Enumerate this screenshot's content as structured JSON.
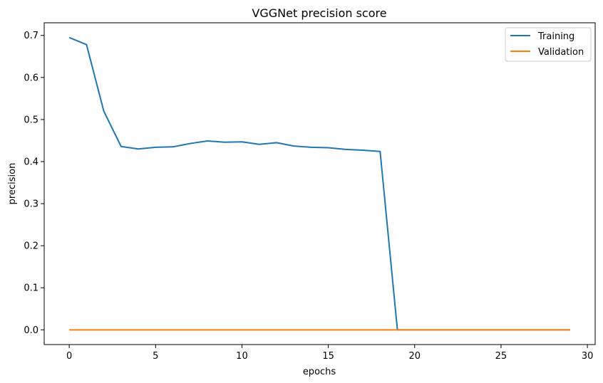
{
  "chart_data": {
    "type": "line",
    "title": "VGGNet precision score",
    "xlabel": "epochs",
    "ylabel": "precision",
    "xlim": [
      -1.45,
      30.45
    ],
    "ylim": [
      -0.035,
      0.73
    ],
    "xticks": [
      0,
      5,
      10,
      15,
      20,
      25,
      30
    ],
    "yticks": [
      0.0,
      0.1,
      0.2,
      0.3,
      0.4,
      0.5,
      0.6,
      0.7
    ],
    "xtick_labels": [
      "0",
      "5",
      "10",
      "15",
      "20",
      "25",
      "30"
    ],
    "ytick_labels": [
      "0.0",
      "0.1",
      "0.2",
      "0.3",
      "0.4",
      "0.5",
      "0.6",
      "0.7"
    ],
    "grid": false,
    "legend_position": "top-right",
    "series": [
      {
        "name": "Training",
        "color": "#1f77b4",
        "x": [
          0,
          1,
          2,
          3,
          4,
          5,
          6,
          7,
          8,
          9,
          10,
          11,
          12,
          13,
          14,
          15,
          16,
          17,
          18,
          19,
          20,
          21,
          22,
          23,
          24,
          25,
          26,
          27,
          28,
          29
        ],
        "y": [
          0.695,
          0.678,
          0.52,
          0.436,
          0.43,
          0.434,
          0.435,
          0.443,
          0.449,
          0.446,
          0.447,
          0.441,
          0.445,
          0.437,
          0.434,
          0.433,
          0.429,
          0.427,
          0.424,
          0.0,
          0.0,
          0.0,
          0.0,
          0.0,
          0.0,
          0.0,
          0.0,
          0.0,
          0.0,
          0.0
        ]
      },
      {
        "name": "Validation",
        "color": "#ff7f0e",
        "x": [
          0,
          1,
          2,
          3,
          4,
          5,
          6,
          7,
          8,
          9,
          10,
          11,
          12,
          13,
          14,
          15,
          16,
          17,
          18,
          19,
          20,
          21,
          22,
          23,
          24,
          25,
          26,
          27,
          28,
          29
        ],
        "y": [
          0.0,
          0.0,
          0.0,
          0.0,
          0.0,
          0.0,
          0.0,
          0.0,
          0.0,
          0.0,
          0.0,
          0.0,
          0.0,
          0.0,
          0.0,
          0.0,
          0.0,
          0.0,
          0.0,
          0.0,
          0.0,
          0.0,
          0.0,
          0.0,
          0.0,
          0.0,
          0.0,
          0.0,
          0.0,
          0.0
        ]
      }
    ]
  }
}
